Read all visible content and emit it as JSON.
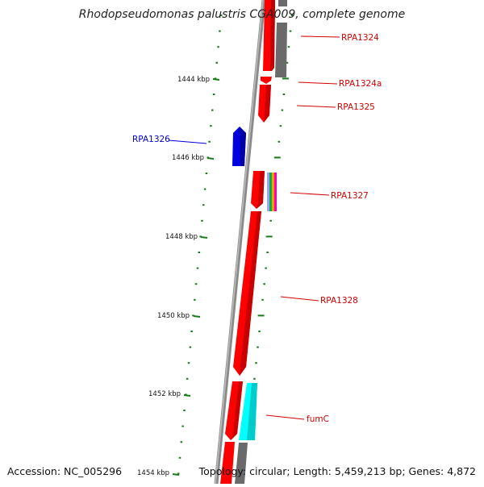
{
  "title": "Rhodopseudomonas palustris CGA009, complete genome",
  "accession": "Accession: NC_005296",
  "summary": "Topology: circular; Length: 5,459,213 bp; Genes: 4,872",
  "colors": {
    "forward_gene": "#ff0000",
    "reverse_gene": "#0000dd",
    "pseudo_gene": "#666666",
    "rna_gene": "#00ffff",
    "backbone": "#888888",
    "tick": "#1a7a1a",
    "label_red": "#d40000",
    "label_blue": "#0000cc"
  },
  "scale_labels": [
    "1444 kbp",
    "1446 kbp",
    "1448 kbp",
    "1450 kbp",
    "1452 kbp",
    "1454 kbp"
  ],
  "genes": [
    {
      "name": "RPA1324",
      "color": "#d40000"
    },
    {
      "name": "RPA1324a",
      "color": "#d40000"
    },
    {
      "name": "RPA1325",
      "color": "#d40000"
    },
    {
      "name": "RPA1326",
      "color": "#0000cc"
    },
    {
      "name": "RPA1327",
      "color": "#d40000"
    },
    {
      "name": "RPA1328",
      "color": "#d40000"
    },
    {
      "name": "fumC",
      "color": "#d40000"
    }
  ]
}
